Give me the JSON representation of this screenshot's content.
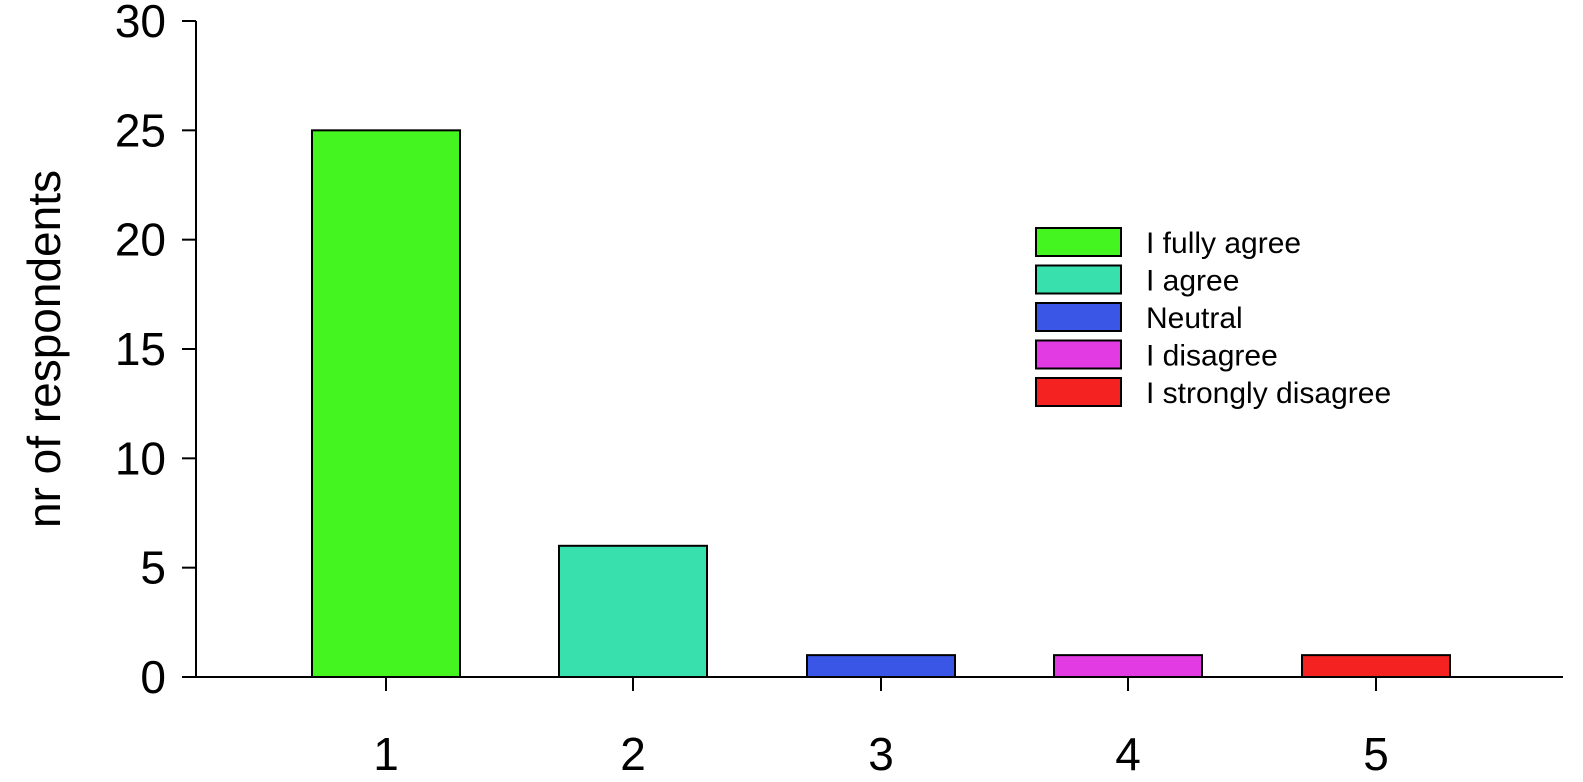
{
  "chart_data": {
    "type": "bar",
    "categories": [
      "1",
      "2",
      "3",
      "4",
      "5"
    ],
    "values": [
      25,
      6,
      1,
      1,
      1
    ],
    "colors": [
      "#44f51f",
      "#38e0ae",
      "#3a56e6",
      "#e33be3",
      "#f52222"
    ],
    "ylabel": "nr of respondents",
    "xlabel": "",
    "ylim": [
      0,
      30
    ],
    "yticks": [
      "0",
      "5",
      "10",
      "15",
      "20",
      "25",
      "30"
    ],
    "legend": {
      "placement": "right",
      "entries": [
        "I fully agree",
        "I agree",
        "Neutral",
        "I disagree",
        "I strongly disagree"
      ]
    },
    "grid": false
  }
}
